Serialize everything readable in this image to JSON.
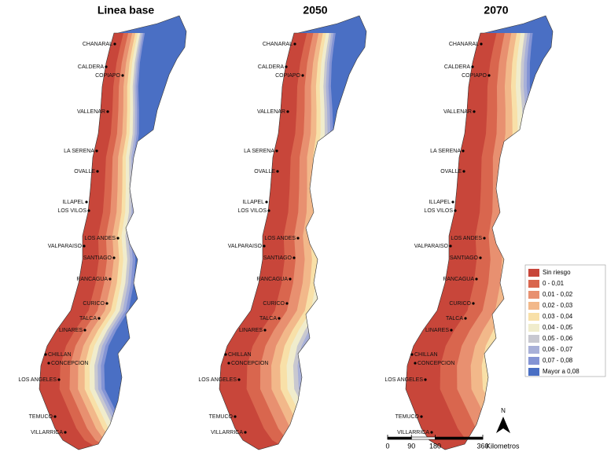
{
  "panels": [
    {
      "title": "Linea base"
    },
    {
      "title": "2050"
    },
    {
      "title": "2070"
    }
  ],
  "cities": [
    "CHANARAL",
    "CALDERA",
    "COPIAPO",
    "VALLENAR",
    "LA SERENA",
    "OVALLE",
    "ILLAPEL",
    "LOS VILOS",
    "LOS ANDES",
    "VALPARAISO",
    "SANTIAGO",
    "RANCAGUA",
    "CURICO",
    "TALCA",
    "LINARES",
    "CHILLAN",
    "CONCEPCION",
    "LOS ANGELES",
    "TEMUCO",
    "VILLARRICA"
  ],
  "legend": [
    {
      "label": "Sin riesgo",
      "color": "#c8463a"
    },
    {
      "label": "0 - 0,01",
      "color": "#d9664e"
    },
    {
      "label": "0,01 - 0,02",
      "color": "#e89070"
    },
    {
      "label": "0,02 - 0,03",
      "color": "#f2b88a"
    },
    {
      "label": "0,03 - 0,04",
      "color": "#f8e0a8"
    },
    {
      "label": "0,04 - 0,05",
      "color": "#f0eccc"
    },
    {
      "label": "0,05 - 0,06",
      "color": "#c8c8d0"
    },
    {
      "label": "0,06 - 0,07",
      "color": "#a8b0d8"
    },
    {
      "label": "0,07 - 0,08",
      "color": "#8494d4"
    },
    {
      "label": "Mayor a 0,08",
      "color": "#4a6fc4"
    }
  ],
  "scale": {
    "ticks": [
      0,
      90,
      180,
      360
    ],
    "unit": "Kilometros"
  },
  "north": "N"
}
